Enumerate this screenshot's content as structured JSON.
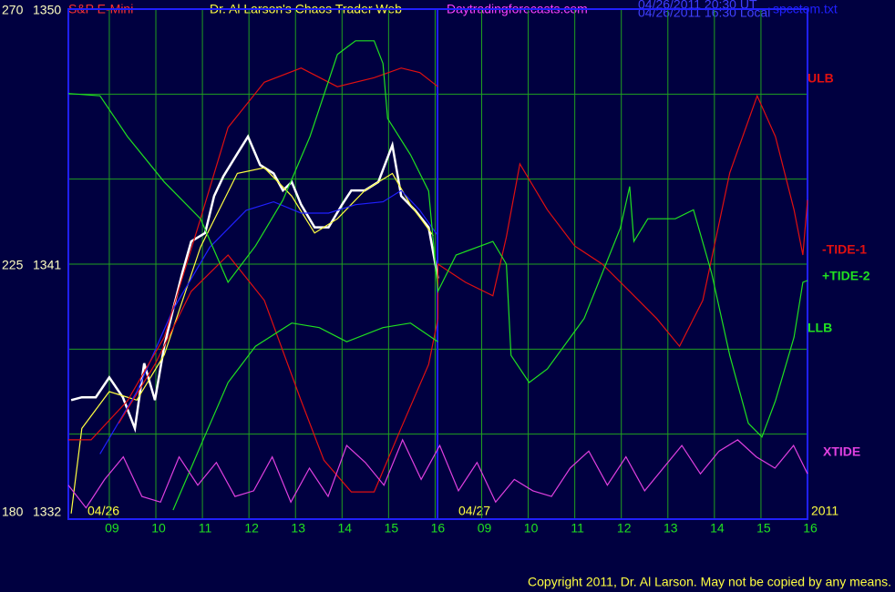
{
  "chart_data": {
    "type": "line",
    "title": "Dr. Al Larson's Chaos Trader Web",
    "symbol": "S&P E-Mini",
    "site": "Daytradingforecasts.com",
    "timestamps": [
      "04/26/2011 20:30 UT",
      "04/26/2011 16:30 Local"
    ],
    "file": "spcctom.txt",
    "date_labels": [
      "04/26",
      "04/27",
      "2011"
    ],
    "footer": "Copyright 2011, Dr. Al Larson. May not be copied by any means.",
    "xlim": [
      -0.88,
      15
    ],
    "xticks": [
      {
        "value": 0,
        "label": "09"
      },
      {
        "value": 1,
        "label": "10"
      },
      {
        "value": 2,
        "label": "11"
      },
      {
        "value": 3,
        "label": "12"
      },
      {
        "value": 4,
        "label": "13"
      },
      {
        "value": 5,
        "label": "14"
      },
      {
        "value": 6,
        "label": "15"
      },
      {
        "value": 7,
        "label": "16"
      },
      {
        "value": 8,
        "label": "09"
      },
      {
        "value": 9,
        "label": "10"
      },
      {
        "value": 10,
        "label": "11"
      },
      {
        "value": 11,
        "label": "12"
      },
      {
        "value": 12,
        "label": "13"
      },
      {
        "value": 13,
        "label": "14"
      },
      {
        "value": 14,
        "label": "15"
      },
      {
        "value": 15,
        "label": "16"
      }
    ],
    "ylim": [
      1332,
      1350
    ],
    "yticks": [
      1332,
      1341,
      1350
    ],
    "grid_y": [
      1332,
      1335,
      1338,
      1341,
      1344,
      1347,
      1350
    ],
    "y2lim": [
      180,
      270
    ],
    "y2ticks": [
      180,
      225,
      270
    ],
    "grid": true,
    "series": [
      {
        "color": "#ffffff",
        "x": [
          -0.82,
          -0.59,
          -0.29,
          0,
          0.29,
          0.55,
          0.75,
          0.98,
          1.18,
          1.37,
          1.57,
          1.76,
          2.06,
          2.25,
          2.45,
          2.75,
          2.98,
          3.24,
          3.53,
          3.73,
          3.92,
          4.12,
          4.41,
          4.71,
          5,
          5.2,
          5.49,
          5.78,
          6.08,
          6.27,
          6.57,
          6.86,
          7.06
        ],
        "values": [
          1336.2,
          1336.3,
          1336.3,
          1337,
          1336.3,
          1335.2,
          1337.5,
          1336.2,
          1338.1,
          1339.4,
          1340.7,
          1341.8,
          1342.1,
          1343.4,
          1344.1,
          1344.9,
          1345.5,
          1344.5,
          1344.2,
          1343.6,
          1343.9,
          1343.1,
          1342.3,
          1342.3,
          1343.1,
          1343.6,
          1343.6,
          1343.9,
          1345.2,
          1343.4,
          1342.9,
          1342.3,
          1340.5
        ]
      },
      {
        "color": "#ffff40",
        "x": [
          -0.82,
          -0.59,
          0,
          0.59,
          1.18,
          1.96,
          2.75,
          3.33,
          3.92,
          4.41,
          4.9,
          5.49,
          6.08,
          6.47,
          6.96
        ],
        "values": [
          1332.2,
          1335.2,
          1336.5,
          1336.2,
          1337.8,
          1341.6,
          1344.2,
          1344.4,
          1343.4,
          1342.1,
          1342.6,
          1343.6,
          1344.2,
          1343.1,
          1342
        ]
      },
      {
        "color": "#2020ff",
        "x": [
          -0.2,
          0.59,
          1.37,
          2.16,
          2.94,
          3.53,
          4.12,
          4.71,
          5.29,
          5.88,
          6.27,
          6.67,
          7.06
        ],
        "values": [
          1334.3,
          1336.5,
          1339.4,
          1341.6,
          1342.9,
          1343.2,
          1342.8,
          1342.8,
          1343.1,
          1343.2,
          1343.6,
          1342.9,
          1342
        ]
      },
      {
        "name": "ULB",
        "color": "#e01010",
        "axis": "y2",
        "x": [
          -0.88,
          -0.39,
          0.39,
          1.18,
          1.96,
          2.55,
          3.33,
          4.12,
          4.9,
          5.69,
          6.27,
          6.67,
          7.06
        ],
        "values": [
          194,
          194,
          200.9,
          212.1,
          233,
          249.1,
          257.1,
          259.6,
          256.3,
          257.9,
          259.6,
          258.8,
          256.3
        ]
      },
      {
        "name": "-TIDE-1",
        "color": "#e01010",
        "axis": "y2",
        "x": [
          0.2,
          0.98,
          1.76,
          2.55,
          3.33,
          4.12,
          4.61,
          5.2,
          5.69,
          6.27,
          6.86,
          7.06,
          7.06,
          7.65,
          8.24,
          8.53,
          8.82,
          9.41,
          10,
          10.59,
          11.18,
          11.76,
          12.25,
          12.75,
          13.33,
          13.92,
          14.31,
          14.71,
          14.9,
          15
        ],
        "values": [
          196.9,
          207.3,
          220.2,
          226.6,
          218.6,
          200.9,
          190.4,
          184.8,
          184.8,
          196.1,
          207.3,
          215.4,
          225,
          221.8,
          219.4,
          229.8,
          242.7,
          234.6,
          228.2,
          225,
          220.2,
          215.4,
          210.5,
          218.6,
          241.1,
          254.7,
          247.5,
          234.6,
          226.6,
          236.3
        ]
      },
      {
        "name": "+TIDE-2",
        "color": "#20e020",
        "axis": "y2",
        "x": [
          -0.88,
          -0.2,
          0.39,
          1.18,
          1.96,
          2.55,
          3.14,
          3.73,
          4.31,
          4.9,
          5.29,
          5.69,
          5.88,
          5.98,
          6.47,
          6.86,
          7.06,
          7.45,
          8.24,
          8.53,
          8.63,
          9.02,
          9.41,
          10.2,
          10.98,
          11.18,
          11.27,
          11.57,
          12.16,
          12.55,
          12.94,
          13.33,
          13.73,
          14.02,
          14.31,
          14.71,
          14.9,
          15
        ],
        "values": [
          255.1,
          254.7,
          247.5,
          239.5,
          233,
          221.8,
          228.2,
          236.3,
          247.5,
          262,
          264.4,
          264.4,
          260.4,
          250.7,
          244.3,
          237.9,
          220.2,
          226.6,
          229,
          225,
          208.9,
          204.1,
          206.5,
          215.4,
          231.4,
          238.7,
          229,
          233,
          233,
          234.6,
          223.4,
          208.9,
          196.9,
          194.5,
          200.9,
          212.1,
          221.8,
          222.1
        ]
      },
      {
        "name": "LLB",
        "color": "#20e020",
        "axis": "y2",
        "x": [
          1.37,
          1.96,
          2.55,
          3.14,
          3.92,
          4.51,
          5.1,
          5.88,
          6.47,
          7.06
        ],
        "values": [
          181.6,
          192.9,
          204.1,
          210.5,
          214.6,
          213.8,
          211.3,
          213.8,
          214.6,
          211.3
        ]
      },
      {
        "name": "XTIDE",
        "color": "#e040e0",
        "axis": "y2",
        "x": [
          -0.88,
          -0.5,
          -0.1,
          0.3,
          0.7,
          1.1,
          1.5,
          1.9,
          2.3,
          2.7,
          3.1,
          3.5,
          3.9,
          4.3,
          4.7,
          5.1,
          5.5,
          5.9,
          6.3,
          6.7,
          7.1,
          7.5,
          7.9,
          8.3,
          8.7,
          9.1,
          9.5,
          9.9,
          10.3,
          10.7,
          11.1,
          11.5,
          11.9,
          12.3,
          12.7,
          13.1,
          13.5,
          13.9,
          14.3,
          14.7,
          15
        ],
        "values": [
          186,
          182,
          187,
          191,
          184,
          183,
          191,
          186,
          190,
          184,
          185,
          191,
          183,
          189,
          184,
          193,
          190,
          186,
          194,
          187,
          193,
          185,
          190,
          183,
          187,
          185,
          184,
          189,
          192,
          186,
          191,
          185,
          189,
          193,
          188,
          192,
          194,
          191,
          189,
          193,
          188
        ]
      }
    ]
  }
}
